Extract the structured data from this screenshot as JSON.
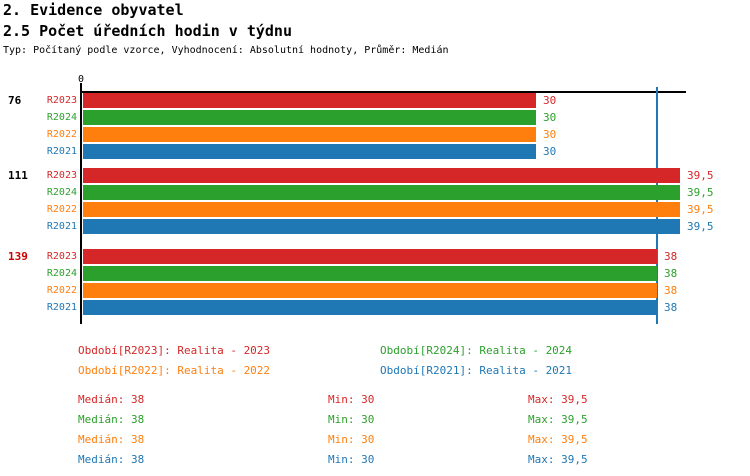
{
  "header": {
    "title": "2. Evidence obyvatel",
    "subtitle": "2.5 Počet úředních hodin v týdnu",
    "meta": "Typ: Počítaný podle vzorce, Vyhodnocení: Absolutní hodnoty, Průměr: Medián"
  },
  "colors": {
    "R2023": "#d62728",
    "R2024": "#2ca02c",
    "R2022": "#ff7f0e",
    "R2021": "#1f77b4",
    "highlight_group_label": "#cc0000",
    "median_line": "#1f77b4",
    "axis": "#000000"
  },
  "chart_data": {
    "type": "bar",
    "orientation": "horizontal",
    "title": "2.5 Počet úředních hodin v týdnu",
    "value_axis": {
      "origin_label": "0",
      "min": 0,
      "approx_max": 40
    },
    "median_line_value": 38,
    "series_order": [
      "R2023",
      "R2024",
      "R2022",
      "R2021"
    ],
    "groups": [
      {
        "label": "76",
        "highlighted": false,
        "bars": [
          {
            "series": "R2023",
            "value": 30,
            "label": "30"
          },
          {
            "series": "R2024",
            "value": 30,
            "label": "30"
          },
          {
            "series": "R2022",
            "value": 30,
            "label": "30"
          },
          {
            "series": "R2021",
            "value": 30,
            "label": "30"
          }
        ]
      },
      {
        "label": "111",
        "highlighted": false,
        "bars": [
          {
            "series": "R2023",
            "value": 39.5,
            "label": "39,5"
          },
          {
            "series": "R2024",
            "value": 39.5,
            "label": "39,5"
          },
          {
            "series": "R2022",
            "value": 39.5,
            "label": "39,5"
          },
          {
            "series": "R2021",
            "value": 39.5,
            "label": "39,5"
          }
        ]
      },
      {
        "label": "139",
        "highlighted": true,
        "bars": [
          {
            "series": "R2023",
            "value": 38,
            "label": "38"
          },
          {
            "series": "R2024",
            "value": 38,
            "label": "38"
          },
          {
            "series": "R2022",
            "value": 38,
            "label": "38"
          },
          {
            "series": "R2021",
            "value": 38,
            "label": "38"
          }
        ]
      }
    ]
  },
  "legend": {
    "items": [
      {
        "series": "R2023",
        "label": "Období[R2023]: Realita - 2023"
      },
      {
        "series": "R2024",
        "label": "Období[R2024]: Realita - 2024"
      },
      {
        "series": "R2022",
        "label": "Období[R2022]: Realita - 2022"
      },
      {
        "series": "R2021",
        "label": "Období[R2021]: Realita - 2021"
      }
    ]
  },
  "stats": {
    "rows": [
      {
        "series": "R2023",
        "median": "Medián: 38",
        "min": "Min: 30",
        "max": "Max: 39,5"
      },
      {
        "series": "R2024",
        "median": "Medián: 38",
        "min": "Min: 30",
        "max": "Max: 39,5"
      },
      {
        "series": "R2022",
        "median": "Medián: 38",
        "min": "Min: 30",
        "max": "Max: 39,5"
      },
      {
        "series": "R2021",
        "median": "Medián: 38",
        "min": "Min: 30",
        "max": "Max: 39,5"
      }
    ]
  }
}
